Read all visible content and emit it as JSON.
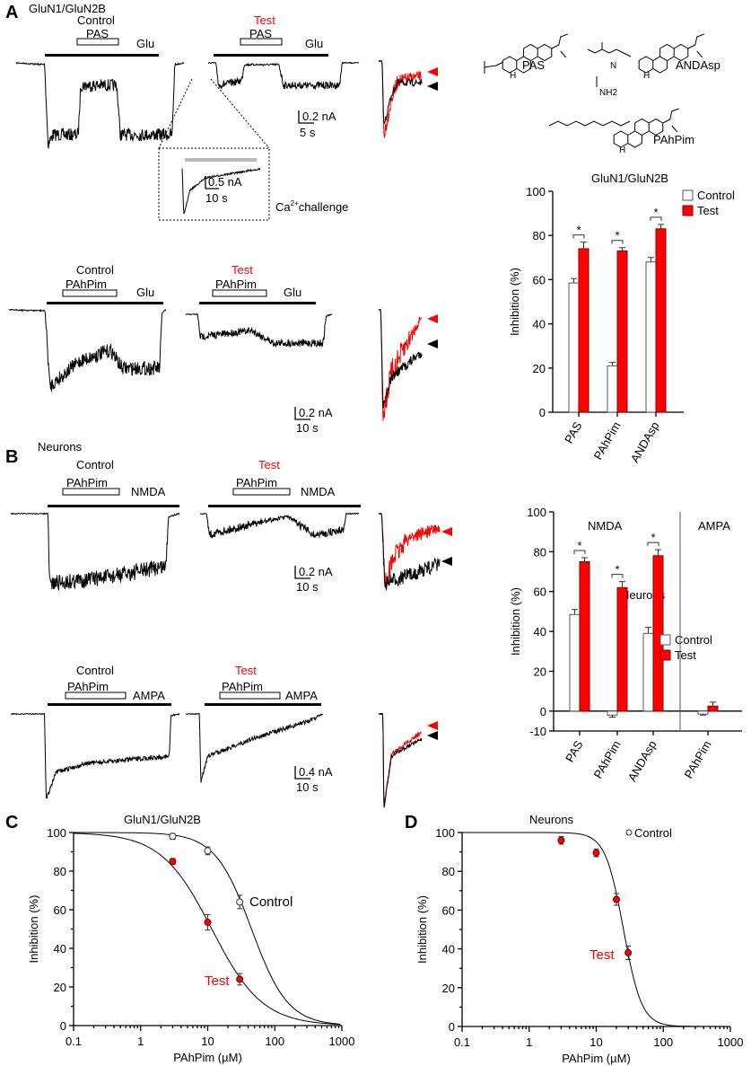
{
  "panel_labels": {
    "A": "A",
    "B": "B",
    "C": "C",
    "D": "D"
  },
  "colors": {
    "test": "#ff0000",
    "control": "#000000",
    "inset_bar": "#bbbbbb"
  },
  "panelA": {
    "title": "GluN1/GluN2B",
    "row1": {
      "control": "Control",
      "test": "Test",
      "drug": "PAS",
      "agonist": "Glu",
      "scale_current": "0.2 nA",
      "scale_time": "5 s"
    },
    "inset": {
      "scale_current": "0.5 nA",
      "scale_time": "10 s",
      "ca": "Ca",
      "ca_sup": "2+",
      "challenge": "challenge"
    },
    "row2": {
      "control": "Control",
      "test": "Test",
      "drug": "PAhPim",
      "agonist": "Glu",
      "scale_current": "0.2 nA",
      "scale_time": "10 s"
    }
  },
  "panelB": {
    "title": "Neurons",
    "row3": {
      "control": "Control",
      "test": "Test",
      "drug": "PAhPim",
      "agonist": "NMDA",
      "scale_current": "0.2 nA",
      "scale_time": "10 s"
    },
    "row4": {
      "control": "Control",
      "test": "Test",
      "drug": "PAhPim",
      "agonist": "AMPA",
      "scale_current": "0.4 nA",
      "scale_time": "10 s"
    }
  },
  "structures": {
    "names": [
      "PAS",
      "ANDAsp",
      "PAhPim"
    ],
    "atoms": {
      "h": "H",
      "nh2": "NH2",
      "n": "N",
      "h_small": "H"
    }
  },
  "chart_data": [
    {
      "type": "bar",
      "title": "GluN1/GluN2B",
      "ylabel": "Inhibition (%)",
      "ylim": [
        0,
        100
      ],
      "yticks": [
        0,
        20,
        40,
        60,
        80,
        100
      ],
      "categories": [
        "PAS",
        "PAhPim",
        "ANDAsp"
      ],
      "series": [
        {
          "name": "Control",
          "values": [
            58.5,
            21,
            68
          ],
          "errors": [
            2,
            1.5,
            2
          ]
        },
        {
          "name": "Test",
          "values": [
            74,
            73,
            83
          ],
          "errors": [
            3,
            1.5,
            2
          ]
        }
      ],
      "significance": [
        "*",
        "*",
        "*"
      ],
      "legend": "top-right"
    },
    {
      "type": "bar",
      "title": "Neurons",
      "group_labels": [
        "NMDA",
        "AMPA"
      ],
      "ylabel": "Inhibition (%)",
      "ylim": [
        -10,
        100
      ],
      "yticks": [
        -10,
        0,
        20,
        40,
        60,
        80,
        100
      ],
      "categories": [
        "PAS",
        "PAhPim",
        "ANDAsp",
        "PAhPim"
      ],
      "series": [
        {
          "name": "Control",
          "values": [
            48.5,
            -2,
            39,
            -1.5
          ],
          "errors": [
            2.5,
            1,
            3,
            0.5
          ]
        },
        {
          "name": "Test",
          "values": [
            75,
            62,
            78,
            2.5
          ],
          "errors": [
            2,
            3,
            3,
            2
          ]
        }
      ],
      "significance": [
        "*",
        "*",
        "*",
        ""
      ],
      "legend": "right"
    },
    {
      "type": "scatter",
      "title": "GluN1/GluN2B",
      "xlabel": "PAhPim (µM)",
      "ylabel": "Inhibition (%)",
      "xscale": "log",
      "xlim": [
        0.1,
        1000
      ],
      "ylim": [
        0,
        100
      ],
      "xticks": [
        "0.1",
        "1",
        "10",
        "100",
        "1000"
      ],
      "yticks": [
        0,
        20,
        40,
        60,
        80,
        100
      ],
      "series": [
        {
          "name": "Control",
          "x": [
            3,
            10,
            30
          ],
          "y": [
            98,
            90.5,
            64
          ],
          "errors": [
            1.5,
            2,
            3.5
          ]
        },
        {
          "name": "Test",
          "x": [
            3,
            10,
            30
          ],
          "y": [
            85,
            53.5,
            24
          ],
          "errors": [
            1.5,
            4,
            3
          ]
        }
      ]
    },
    {
      "type": "scatter",
      "title": "Neurons",
      "xlabel": "PAhPim (µM)",
      "ylabel": "Inhibition (%)",
      "xscale": "log",
      "xlim": [
        0.1,
        1000
      ],
      "ylim": [
        0,
        100
      ],
      "xticks": [
        "0.1",
        "1",
        "10",
        "100",
        "1000"
      ],
      "yticks": [
        0,
        20,
        40,
        60,
        80,
        100
      ],
      "legend_label": "Control",
      "series": [
        {
          "name": "Test",
          "x": [
            3,
            10,
            20,
            30
          ],
          "y": [
            96,
            89.5,
            65.5,
            38
          ],
          "errors": [
            2,
            2,
            3,
            3.5
          ]
        }
      ]
    }
  ]
}
